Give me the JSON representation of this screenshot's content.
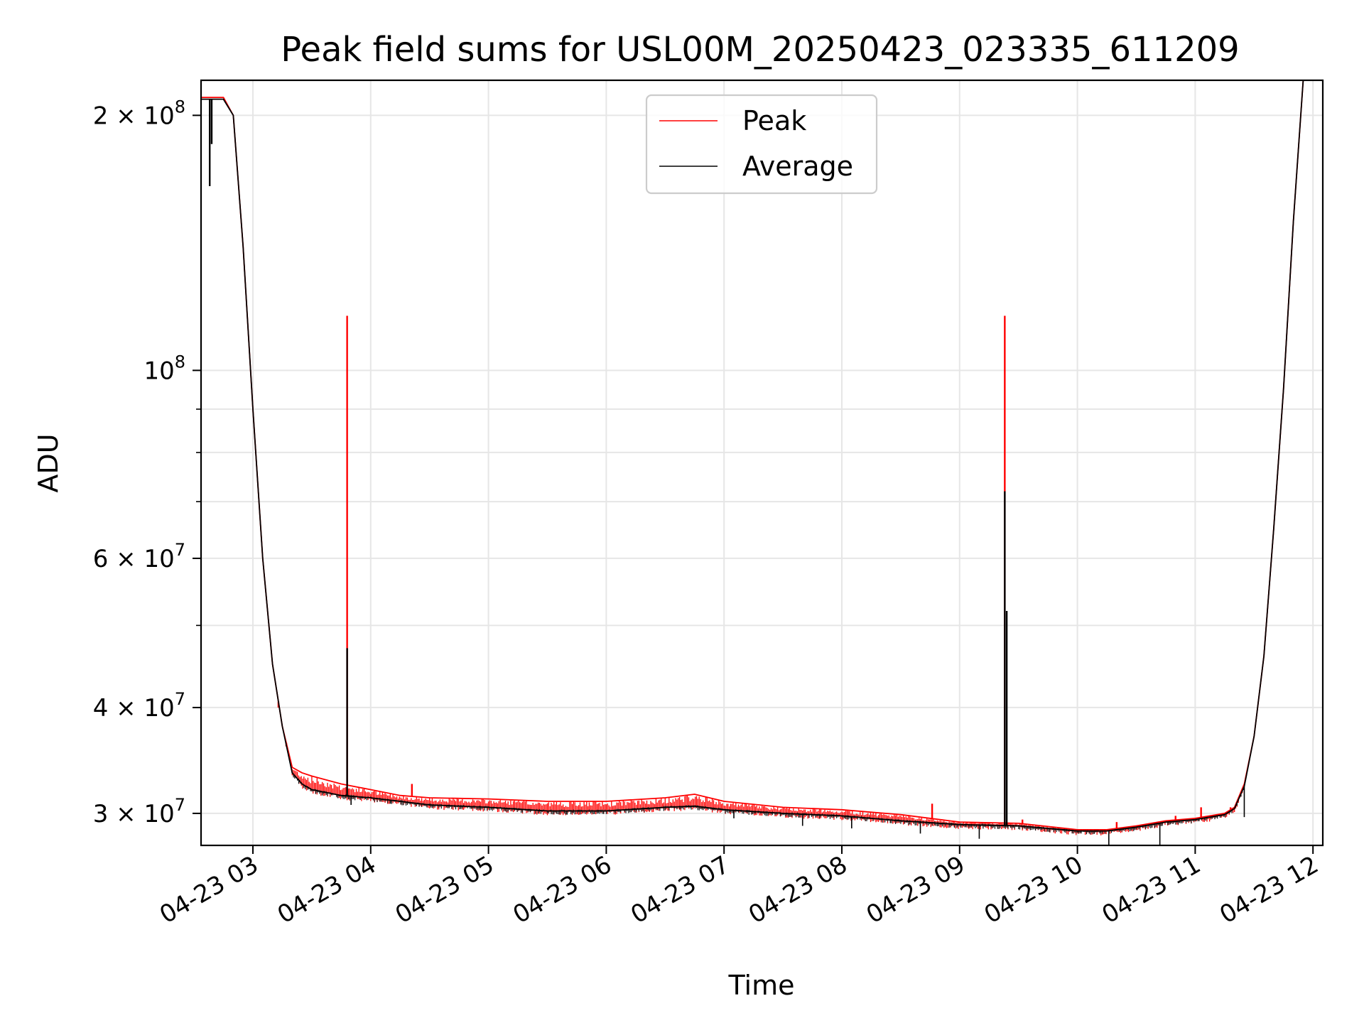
{
  "chart_data": {
    "type": "line",
    "title": "Peak field sums for USL00M_20250423_023335_611209",
    "xlabel": "Time",
    "ylabel": "ADU",
    "yscale": "log",
    "grid": true,
    "legend_position": "top-center",
    "xlim": [
      "2025-04-23 02:33:35",
      "2025-04-23 12:05"
    ],
    "ylim": [
      27500000,
      220000000
    ],
    "x_ticks": [
      {
        "value": "2025-04-23 03:00",
        "label": "04-23 03"
      },
      {
        "value": "2025-04-23 04:00",
        "label": "04-23 04"
      },
      {
        "value": "2025-04-23 05:00",
        "label": "04-23 05"
      },
      {
        "value": "2025-04-23 06:00",
        "label": "04-23 06"
      },
      {
        "value": "2025-04-23 07:00",
        "label": "04-23 07"
      },
      {
        "value": "2025-04-23 08:00",
        "label": "04-23 08"
      },
      {
        "value": "2025-04-23 09:00",
        "label": "04-23 09"
      },
      {
        "value": "2025-04-23 10:00",
        "label": "04-23 10"
      },
      {
        "value": "2025-04-23 11:00",
        "label": "04-23 11"
      },
      {
        "value": "2025-04-23 12:00",
        "label": "04-23 12"
      }
    ],
    "y_major_ticks": [
      {
        "value": 30000000,
        "mant": "3 × 10",
        "exp": "7"
      },
      {
        "value": 40000000,
        "mant": "4 × 10",
        "exp": "7"
      },
      {
        "value": 60000000,
        "mant": "6 × 10",
        "exp": "7"
      },
      {
        "value": 100000000,
        "mant": "10",
        "exp": "8"
      },
      {
        "value": 200000000,
        "mant": "2 × 10",
        "exp": "8"
      }
    ],
    "y_minor_ticks": [
      50000000,
      70000000,
      80000000,
      90000000
    ],
    "series": [
      {
        "name": "Peak",
        "color": "#ff0000",
        "points": [
          [
            "2025-04-23 02:33:35",
            210000000
          ],
          [
            "2025-04-23 02:45",
            210000000
          ],
          [
            "2025-04-23 02:50",
            200000000
          ],
          [
            "2025-04-23 02:55",
            140000000
          ],
          [
            "2025-04-23 03:00",
            90000000
          ],
          [
            "2025-04-23 03:05",
            60000000
          ],
          [
            "2025-04-23 03:10",
            45000000
          ],
          [
            "2025-04-23 03:15",
            38000000
          ],
          [
            "2025-04-23 03:20",
            34000000
          ],
          [
            "2025-04-23 03:25",
            33500000
          ],
          [
            "2025-04-23 03:30",
            33200000
          ],
          [
            "2025-04-23 03:45",
            32500000
          ],
          [
            "2025-04-23 04:00",
            32000000
          ],
          [
            "2025-04-23 04:15",
            31500000
          ],
          [
            "2025-04-23 04:30",
            31300000
          ],
          [
            "2025-04-23 05:00",
            31200000
          ],
          [
            "2025-04-23 05:30",
            31000000
          ],
          [
            "2025-04-23 06:00",
            31000000
          ],
          [
            "2025-04-23 06:30",
            31300000
          ],
          [
            "2025-04-23 06:45",
            31600000
          ],
          [
            "2025-04-23 07:00",
            31000000
          ],
          [
            "2025-04-23 07:30",
            30500000
          ],
          [
            "2025-04-23 08:00",
            30300000
          ],
          [
            "2025-04-23 08:30",
            29900000
          ],
          [
            "2025-04-23 09:00",
            29300000
          ],
          [
            "2025-04-23 09:30",
            29200000
          ],
          [
            "2025-04-23 10:00",
            28700000
          ],
          [
            "2025-04-23 10:15",
            28700000
          ],
          [
            "2025-04-23 10:30",
            29000000
          ],
          [
            "2025-04-23 10:45",
            29400000
          ],
          [
            "2025-04-23 11:00",
            29600000
          ],
          [
            "2025-04-23 11:15",
            30000000
          ],
          [
            "2025-04-23 11:20",
            30500000
          ],
          [
            "2025-04-23 11:25",
            32500000
          ],
          [
            "2025-04-23 11:30",
            37000000
          ],
          [
            "2025-04-23 11:35",
            46000000
          ],
          [
            "2025-04-23 11:40",
            65000000
          ],
          [
            "2025-04-23 11:45",
            95000000
          ],
          [
            "2025-04-23 11:50",
            150000000
          ],
          [
            "2025-04-23 11:55",
            220000000
          ]
        ],
        "spikes": [
          [
            "2025-04-23 03:48",
            116000000
          ],
          [
            "2025-04-23 09:23",
            116000000
          ],
          [
            "2025-04-23 03:13",
            40000000
          ],
          [
            "2025-04-23 03:17",
            36000000
          ],
          [
            "2025-04-23 04:21",
            32500000
          ],
          [
            "2025-04-23 08:46",
            30800000
          ],
          [
            "2025-04-23 09:32",
            29500000
          ],
          [
            "2025-04-23 10:20",
            29300000
          ],
          [
            "2025-04-23 10:50",
            29800000
          ],
          [
            "2025-04-23 11:03",
            30500000
          ],
          [
            "2025-04-23 11:18",
            30500000
          ]
        ]
      },
      {
        "name": "Average",
        "color": "#000000",
        "points": [
          [
            "2025-04-23 02:33:35",
            209000000
          ],
          [
            "2025-04-23 02:45",
            209000000
          ],
          [
            "2025-04-23 02:50",
            200000000
          ],
          [
            "2025-04-23 02:55",
            140000000
          ],
          [
            "2025-04-23 03:00",
            90000000
          ],
          [
            "2025-04-23 03:05",
            60000000
          ],
          [
            "2025-04-23 03:10",
            45000000
          ],
          [
            "2025-04-23 03:15",
            38000000
          ],
          [
            "2025-04-23 03:20",
            33500000
          ],
          [
            "2025-04-23 03:25",
            32500000
          ],
          [
            "2025-04-23 03:30",
            32000000
          ],
          [
            "2025-04-23 03:45",
            31500000
          ],
          [
            "2025-04-23 04:00",
            31300000
          ],
          [
            "2025-04-23 04:15",
            31000000
          ],
          [
            "2025-04-23 04:30",
            30700000
          ],
          [
            "2025-04-23 05:00",
            30500000
          ],
          [
            "2025-04-23 05:30",
            30200000
          ],
          [
            "2025-04-23 06:00",
            30200000
          ],
          [
            "2025-04-23 06:30",
            30500000
          ],
          [
            "2025-04-23 06:45",
            30600000
          ],
          [
            "2025-04-23 07:00",
            30300000
          ],
          [
            "2025-04-23 07:30",
            30000000
          ],
          [
            "2025-04-23 08:00",
            29800000
          ],
          [
            "2025-04-23 08:30",
            29400000
          ],
          [
            "2025-04-23 09:00",
            29100000
          ],
          [
            "2025-04-23 09:30",
            29000000
          ],
          [
            "2025-04-23 10:00",
            28600000
          ],
          [
            "2025-04-23 10:15",
            28600000
          ],
          [
            "2025-04-23 10:30",
            28900000
          ],
          [
            "2025-04-23 10:45",
            29300000
          ],
          [
            "2025-04-23 11:00",
            29500000
          ],
          [
            "2025-04-23 11:15",
            29900000
          ],
          [
            "2025-04-23 11:20",
            30400000
          ],
          [
            "2025-04-23 11:25",
            32300000
          ],
          [
            "2025-04-23 11:30",
            37000000
          ],
          [
            "2025-04-23 11:35",
            46000000
          ],
          [
            "2025-04-23 11:40",
            65000000
          ],
          [
            "2025-04-23 11:45",
            95000000
          ],
          [
            "2025-04-23 11:50",
            150000000
          ],
          [
            "2025-04-23 11:55",
            220000000
          ]
        ],
        "spikes": [
          [
            "2025-04-23 02:38",
            165000000
          ],
          [
            "2025-04-23 02:39",
            185000000
          ],
          [
            "2025-04-23 03:48",
            47000000
          ],
          [
            "2025-04-23 09:23",
            72000000
          ],
          [
            "2025-04-23 09:24",
            52000000
          ]
        ],
        "dips": [
          [
            "2025-04-23 03:50",
            30700000
          ],
          [
            "2025-04-23 04:10",
            30800000
          ],
          [
            "2025-04-23 05:40",
            29900000
          ],
          [
            "2025-04-23 07:05",
            29600000
          ],
          [
            "2025-04-23 07:40",
            29000000
          ],
          [
            "2025-04-23 08:05",
            28800000
          ],
          [
            "2025-04-23 08:40",
            28400000
          ],
          [
            "2025-04-23 09:10",
            28000000
          ],
          [
            "2025-04-23 10:16",
            27500000
          ],
          [
            "2025-04-23 10:42",
            27500000
          ],
          [
            "2025-04-23 11:25",
            29700000
          ]
        ]
      }
    ]
  }
}
